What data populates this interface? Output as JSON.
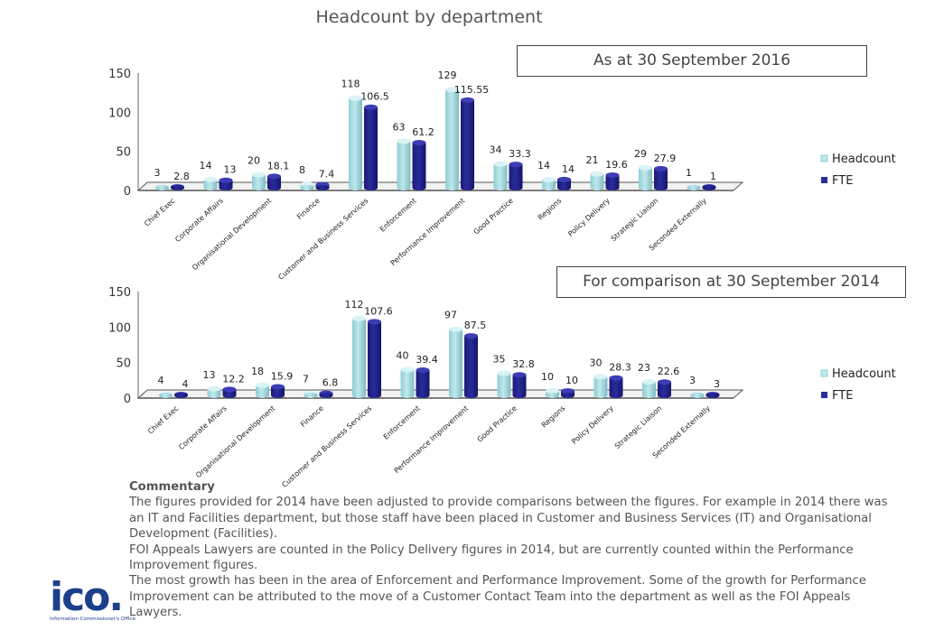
{
  "page": {
    "title": "Headcount by department"
  },
  "chart_data": [
    {
      "type": "bar",
      "title": "As at 30 September 2016",
      "categories": [
        "Chief Exec",
        "Corporate Affairs",
        "Organisational Development",
        "Finance",
        "Customer and Business Services",
        "Enforcement",
        "Performance Improvement",
        "Good Practice",
        "Regions",
        "Policy Delivery",
        "Strategic Liaison",
        "Seconded Externally"
      ],
      "series": [
        {
          "name": "Headcount",
          "values": [
            3,
            14,
            20,
            8,
            118,
            63,
            129,
            34,
            14,
            21,
            29,
            1
          ],
          "labels": [
            "3",
            "14",
            "20",
            "8",
            "118",
            "63",
            "129",
            "34",
            "14",
            "21",
            "29",
            "1"
          ]
        },
        {
          "name": "FTE",
          "values": [
            2.8,
            13,
            18.1,
            7.4,
            106.5,
            61.2,
            115.55,
            33.3,
            14,
            19.6,
            27.9,
            1
          ],
          "labels": [
            "2.8",
            "13",
            "18.1",
            "7.4",
            "106.5",
            "61.2",
            "115.55",
            "33.3",
            "14",
            "19.6",
            "27.9",
            "1"
          ]
        }
      ],
      "yticks": [
        "0",
        "50",
        "100",
        "150"
      ],
      "ylim": [
        0,
        150
      ],
      "legend": "right",
      "colors": {
        "headcount": "#bfe8ec",
        "fte": "#2a2b9c"
      }
    },
    {
      "type": "bar",
      "title": "For comparison at 30 September 2014",
      "categories": [
        "Chief Exec",
        "Corporate Affairs",
        "Organisational Development",
        "Finance",
        "Customer and Business Services",
        "Enforcement",
        "Performance Improvement",
        "Good Practice",
        "Regions",
        "Policy Delivery",
        "Strategic Liaison",
        "Seconded Externally"
      ],
      "series": [
        {
          "name": "Headcount",
          "values": [
            4,
            13,
            18,
            7,
            112,
            40,
            97,
            35,
            10,
            30,
            23,
            3
          ],
          "labels": [
            "4",
            "13",
            "18",
            "7",
            "112",
            "40",
            "97",
            "35",
            "10",
            "30",
            "23",
            "3"
          ]
        },
        {
          "name": "FTE",
          "values": [
            4,
            12.2,
            15.9,
            6.8,
            107.6,
            39.4,
            87.5,
            32.8,
            10,
            28.3,
            22.6,
            3
          ],
          "labels": [
            "4",
            "12.2",
            "15.9",
            "6.8",
            "107.6",
            "39.4",
            "87.5",
            "32.8",
            "10",
            "28.3",
            "22.6",
            "3"
          ]
        }
      ],
      "yticks": [
        "0",
        "50",
        "100",
        "150"
      ],
      "ylim": [
        0,
        150
      ],
      "legend": "right",
      "colors": {
        "headcount": "#bfe8ec",
        "fte": "#2a2b9c"
      }
    }
  ],
  "commentary": {
    "heading": "Commentary",
    "paragraphs": [
      "The figures provided for 2014 have been adjusted to provide comparisons between the figures. For example in 2014 there was an IT and Facilities department, but those staff have been placed in Customer and Business Services (IT) and Organisational Development (Facilities).",
      "FOI Appeals Lawyers are counted in the Policy Delivery figures in 2014, but are currently counted within the Performance Improvement figures.",
      "The most growth has been in the area of Enforcement and Performance Improvement. Some of the growth for Performance Improvement can be attributed to the move of a Customer Contact Team into the department as well as the FOI Appeals Lawyers."
    ]
  },
  "logo": {
    "mark": "ico.",
    "subtitle": "Information Commissioner's Office"
  }
}
